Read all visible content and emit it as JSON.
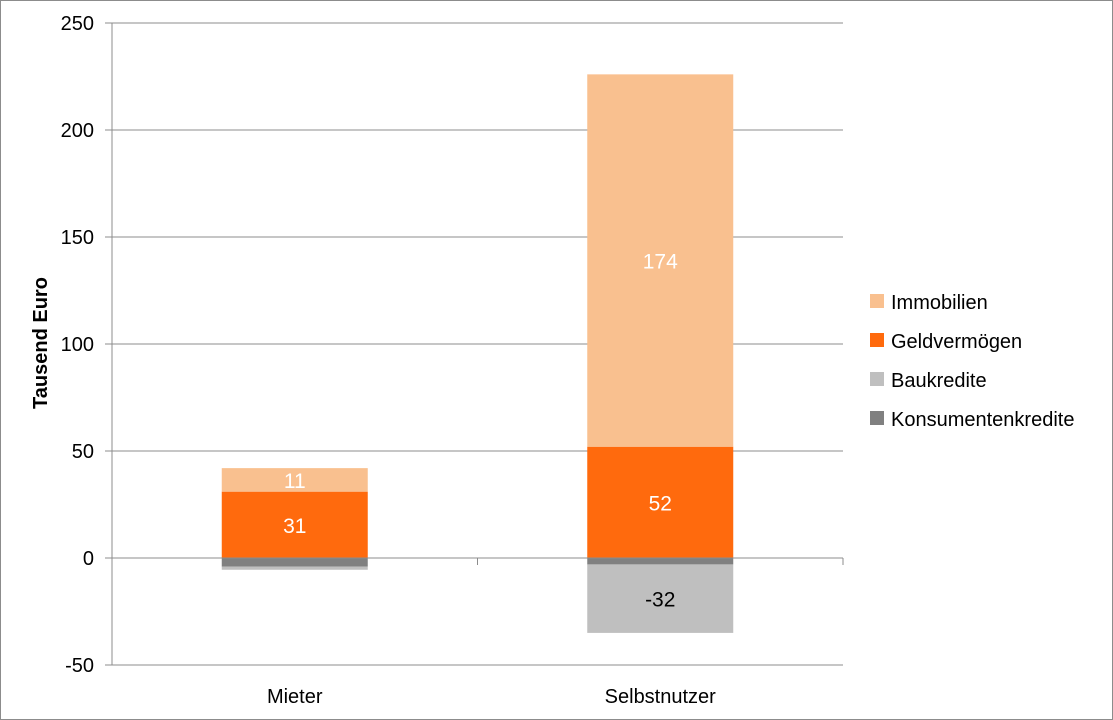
{
  "chart_data": {
    "type": "bar",
    "stacked": true,
    "title": "",
    "xlabel": "",
    "ylabel": "Tausend Euro",
    "ylim": [
      -50,
      250
    ],
    "yticks": [
      250,
      200,
      150,
      100,
      50,
      0,
      -50
    ],
    "grid": true,
    "legend_position": "right",
    "categories": [
      "Mieter",
      "Selbstnutzer"
    ],
    "series": [
      {
        "name": "Immobilien",
        "values": [
          11,
          174
        ],
        "color": "#F9C08F",
        "label_color": "#ffffff",
        "labels": [
          "11",
          "174"
        ]
      },
      {
        "name": "Geldvermögen",
        "values": [
          31,
          52
        ],
        "color": "#FF6A0D",
        "label_color": "#ffffff",
        "labels": [
          "31",
          "52"
        ]
      },
      {
        "name": "Baukredite",
        "values": [
          -1.5,
          -32
        ],
        "color": "#BFBFBF",
        "label_color": "#000000",
        "labels": [
          "",
          "-32"
        ]
      },
      {
        "name": "Konsumentenkredite",
        "values": [
          -4,
          -3
        ],
        "color": "#808080",
        "label_color": "#000000",
        "labels": [
          "",
          ""
        ]
      }
    ]
  }
}
